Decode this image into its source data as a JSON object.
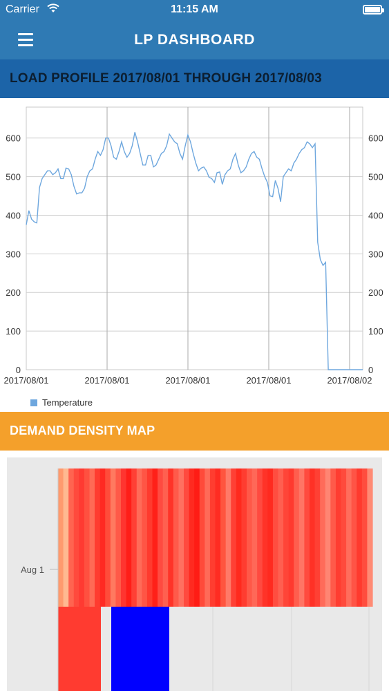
{
  "status_bar": {
    "carrier": "Carrier",
    "time": "11:15 AM",
    "wifi_icon": "wifi-icon",
    "battery_icon": "battery-icon"
  },
  "nav": {
    "title": "LP DASHBOARD",
    "menu_icon": "hamburger-menu-icon"
  },
  "load_profile": {
    "title": "LOAD PROFILE 2017/08/01 THROUGH 2017/08/03"
  },
  "demand_density": {
    "title": "DEMAND DENSITY MAP",
    "y_label": "Aug 1"
  },
  "colors": {
    "nav": "#2f7ab4",
    "section_blue": "#1c64a8",
    "section_orange": "#f4a02b",
    "line": "#6ea7de"
  },
  "chart_data": {
    "type": "line",
    "title": "",
    "xlabel": "",
    "ylabel": "",
    "ylim": [
      0,
      680
    ],
    "y_ticks": [
      0,
      100,
      200,
      300,
      400,
      500,
      600
    ],
    "x_tick_labels": [
      "2017/08/01",
      "2017/08/01",
      "2017/08/01",
      "2017/08/01",
      "2017/08/02"
    ],
    "legend": "bottom-left",
    "grid": true,
    "series": [
      {
        "name": "Temperature",
        "color": "#6ea7de",
        "values": [
          375,
          412,
          390,
          383,
          380,
          472,
          495,
          505,
          515,
          515,
          505,
          510,
          520,
          495,
          495,
          522,
          520,
          505,
          475,
          455,
          458,
          458,
          470,
          500,
          515,
          520,
          545,
          565,
          555,
          570,
          600,
          600,
          580,
          550,
          545,
          565,
          590,
          565,
          550,
          560,
          580,
          615,
          590,
          560,
          530,
          530,
          555,
          555,
          525,
          530,
          545,
          560,
          565,
          580,
          610,
          600,
          590,
          585,
          560,
          545,
          580,
          608,
          590,
          560,
          535,
          515,
          522,
          525,
          515,
          498,
          495,
          485,
          510,
          512,
          480,
          505,
          515,
          520,
          545,
          560,
          530,
          510,
          515,
          525,
          545,
          560,
          565,
          550,
          545,
          520,
          500,
          485,
          450,
          448,
          490,
          470,
          435,
          500,
          510,
          520,
          515,
          535,
          545,
          560,
          570,
          575,
          590,
          585,
          575,
          585,
          330,
          285,
          270,
          278,
          0,
          0,
          0,
          0,
          0,
          0,
          0,
          0,
          0,
          0,
          0,
          0,
          0,
          0
        ]
      }
    ]
  },
  "density_map": {
    "top_row_colors": [
      "#ff9a6e",
      "#ffb991",
      "#ff6450",
      "#ff4a3d",
      "#ff3a32",
      "#ff5040",
      "#ff6a55",
      "#ff3c30",
      "#ff2a22",
      "#ff4c3a",
      "#ff7a60",
      "#ff5a48",
      "#ff3530",
      "#ff1e18",
      "#ff4035",
      "#ff6b58",
      "#ff5545",
      "#ff3a2e",
      "#ff2018",
      "#ff4a40",
      "#ff6050",
      "#ff3328",
      "#ff5a4a",
      "#ff7060",
      "#ff4a3f",
      "#ff2a20",
      "#ff1c15",
      "#ff4a3a",
      "#ff6a58",
      "#ff3d30",
      "#ff2c22",
      "#ff553f",
      "#ff7a68",
      "#ff4035",
      "#ff2a1e",
      "#ff3c30",
      "#ff5848",
      "#ff6858",
      "#ff4a40",
      "#ff3328",
      "#ff2a1f",
      "#ff4d40",
      "#ff5f50",
      "#ff4538",
      "#ff3a2f",
      "#ff5e4e",
      "#ff7565",
      "#ff4b3f",
      "#ff3126",
      "#ff4034",
      "#ff6b5a",
      "#ff8573",
      "#ff5a4a",
      "#ff3d31",
      "#ff4a3c",
      "#ff6d5c",
      "#ff5446",
      "#ff3a2e",
      "#ff4d3e",
      "#ff8a74"
    ],
    "bottom_blocks": [
      {
        "color": "#ff3b30"
      },
      {
        "color": "#0000ff"
      }
    ]
  }
}
